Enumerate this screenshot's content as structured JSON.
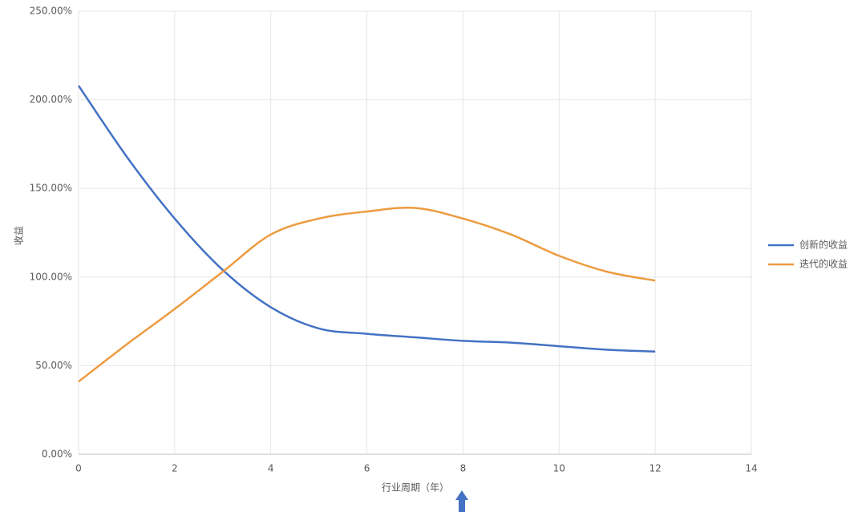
{
  "chart_data": {
    "type": "line",
    "x": [
      0,
      1,
      2,
      3,
      4,
      5,
      6,
      7,
      8,
      9,
      10,
      11,
      12
    ],
    "series": [
      {
        "name": "创新的收益",
        "color": "#4472c4",
        "values": [
          208,
          168,
          133,
          104,
          83,
          71,
          68,
          66,
          64,
          63,
          61,
          59,
          58
        ]
      },
      {
        "name": "迭代的收益",
        "color": "#ed9b40",
        "values": [
          41,
          62,
          82,
          103,
          124,
          133,
          137,
          139,
          133,
          124,
          112,
          103,
          98
        ]
      }
    ],
    "xlim": [
      0,
      14
    ],
    "xticks": [
      0,
      2,
      4,
      6,
      8,
      10,
      12,
      14
    ],
    "ylim": [
      0,
      250
    ],
    "yticks": [
      {
        "value": 0,
        "label": "0.00%"
      },
      {
        "value": 50,
        "label": "50.00%"
      },
      {
        "value": 100,
        "label": "100.00%"
      },
      {
        "value": 150,
        "label": "150.00%"
      },
      {
        "value": 200,
        "label": "200.00%"
      },
      {
        "value": 250,
        "label": "250.00%"
      }
    ],
    "xlabel": "行业周期（年）",
    "ylabel": "收益",
    "grid": true,
    "legend": "right"
  }
}
